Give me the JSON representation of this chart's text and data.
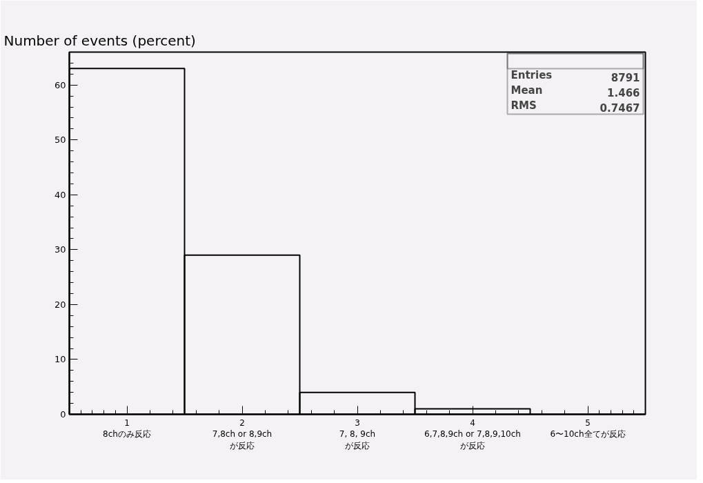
{
  "chart_data": {
    "type": "bar",
    "title": "Number of events (percent)",
    "categories": [
      "1\n8chのみ反応",
      "2\n7,8ch or 8,9ch\nが反応",
      "3\n7, 8, 9ch\nが反応",
      "4\n6,7,8,9ch or 7,8,9,10ch\nが反応",
      "5\n6〜10ch全てが反応"
    ],
    "values": [
      63,
      29,
      4,
      1,
      0
    ],
    "color": "#000000",
    "ylim": [
      0,
      66
    ],
    "yticks": [
      0,
      10,
      20,
      30,
      40,
      50,
      60
    ],
    "annotations": [
      "Entries",
      "8791",
      "Mean",
      "1.466",
      "RMS",
      "0.7467"
    ],
    "grid": false
  }
}
